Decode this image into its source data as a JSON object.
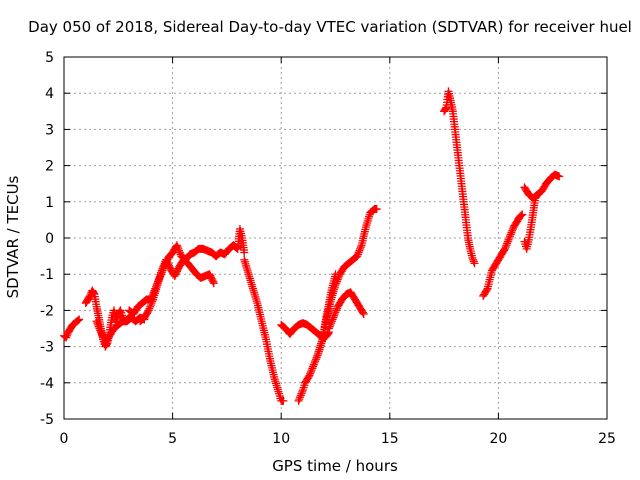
{
  "chart_data": {
    "type": "scatter",
    "title": "Day 050 of 2018, Sidereal Day-to-day VTEC variation (SDTVAR) for receiver huel",
    "xlabel": "GPS time / hours",
    "ylabel": "SDTVAR / TECUs",
    "xlim": [
      0,
      25
    ],
    "ylim": [
      -5,
      5
    ],
    "xticks": [
      "0",
      "5",
      "10",
      "15",
      "20",
      "25"
    ],
    "yticks": [
      "-5",
      "-4",
      "-3",
      "-2",
      "-1",
      "0",
      "1",
      "2",
      "3",
      "4",
      "5"
    ],
    "grid": true,
    "marker": "plus",
    "color": "#ff0000",
    "series": [
      {
        "x": [
          0.0,
          0.1,
          0.2,
          0.3,
          0.4,
          0.5,
          0.6,
          0.7
        ],
        "y": [
          -2.7,
          -2.75,
          -2.6,
          -2.5,
          -2.4,
          -2.35,
          -2.3,
          -2.25
        ]
      },
      {
        "x": [
          1.0,
          1.1,
          1.2,
          1.3,
          1.4,
          1.5,
          1.6,
          1.7,
          1.8,
          1.9,
          2.0,
          2.1,
          2.2,
          2.3,
          2.4,
          2.5,
          2.6,
          2.7,
          2.8,
          3.0
        ],
        "y": [
          -1.8,
          -1.7,
          -1.6,
          -1.45,
          -1.55,
          -1.9,
          -2.2,
          -2.5,
          -2.8,
          -3.0,
          -2.9,
          -2.6,
          -2.2,
          -2.0,
          -2.3,
          -2.1,
          -2.0,
          -2.2,
          -2.3,
          -2.2
        ]
      },
      {
        "x": [
          1.5,
          1.7,
          1.9,
          2.1,
          2.3,
          2.5,
          2.7,
          2.9,
          3.1,
          3.3,
          3.5,
          3.7
        ],
        "y": [
          -2.3,
          -2.6,
          -2.9,
          -2.7,
          -2.5,
          -2.4,
          -2.3,
          -2.3,
          -2.2,
          -2.3,
          -2.2,
          -2.25
        ]
      },
      {
        "x": [
          3.0,
          3.2,
          3.4,
          3.6,
          3.8,
          4.0,
          4.2,
          4.4,
          4.6,
          4.8,
          5.0,
          5.2,
          5.4,
          5.6,
          5.8,
          6.0,
          6.2,
          6.4,
          6.6,
          6.8,
          7.0
        ],
        "y": [
          -2.0,
          -2.1,
          -1.9,
          -1.8,
          -1.7,
          -1.7,
          -1.4,
          -1.1,
          -0.8,
          -0.55,
          -0.4,
          -0.2,
          -0.5,
          -0.6,
          -0.45,
          -0.4,
          -0.3,
          -0.3,
          -0.35,
          -0.4,
          -0.5
        ]
      },
      {
        "x": [
          3.5,
          3.7,
          3.9,
          4.1,
          4.3,
          4.5,
          4.7,
          4.9,
          5.1,
          5.3,
          5.5,
          5.7,
          5.9,
          6.1,
          6.3,
          6.5,
          6.7,
          6.9
        ],
        "y": [
          -2.3,
          -2.2,
          -2.0,
          -1.7,
          -1.3,
          -0.9,
          -0.6,
          -0.85,
          -1.05,
          -0.8,
          -0.6,
          -0.7,
          -0.85,
          -1.0,
          -1.1,
          -1.05,
          -1.0,
          -1.25
        ]
      },
      {
        "x": [
          7.0,
          7.2,
          7.4,
          7.6,
          7.8,
          8.0,
          8.1,
          8.2,
          8.3
        ],
        "y": [
          -0.5,
          -0.4,
          -0.45,
          -0.3,
          -0.2,
          -0.3,
          0.25,
          0.0,
          -0.4
        ]
      },
      {
        "x": [
          8.3,
          8.5,
          8.7,
          8.9,
          9.1,
          9.3,
          9.5,
          9.7,
          9.9,
          10.0,
          10.1
        ],
        "y": [
          -0.6,
          -1.0,
          -1.4,
          -1.8,
          -2.3,
          -2.8,
          -3.4,
          -3.9,
          -4.3,
          -4.5,
          -4.5
        ]
      },
      {
        "x": [
          10.0,
          10.2,
          10.4,
          10.6,
          10.8,
          11.0,
          11.2,
          11.4,
          11.6,
          11.8,
          12.0,
          12.1,
          12.2
        ],
        "y": [
          -2.4,
          -2.5,
          -2.65,
          -2.5,
          -2.4,
          -2.35,
          -2.4,
          -2.5,
          -2.6,
          -2.7,
          -2.75,
          -2.7,
          -2.6
        ]
      },
      {
        "x": [
          12.2,
          12.4,
          12.6,
          12.8,
          13.0,
          13.2,
          13.4,
          13.6,
          13.8
        ],
        "y": [
          -2.5,
          -2.2,
          -1.9,
          -1.7,
          -1.55,
          -1.5,
          -1.7,
          -1.9,
          -2.1
        ]
      },
      {
        "x": [
          10.8,
          10.9,
          11.0,
          11.1,
          11.3,
          11.5,
          11.7,
          11.9,
          12.1,
          12.3,
          12.5,
          12.7,
          12.9,
          13.1,
          13.3,
          13.5,
          13.7,
          13.9,
          14.1,
          14.3,
          14.4
        ],
        "y": [
          -4.5,
          -4.35,
          -4.2,
          -4.0,
          -3.8,
          -3.5,
          -3.2,
          -2.8,
          -2.2,
          -1.7,
          -1.3,
          -1.0,
          -0.8,
          -0.7,
          -0.6,
          -0.5,
          -0.2,
          0.3,
          0.7,
          0.8,
          0.8
        ]
      },
      {
        "x": [
          11.7,
          11.9,
          12.1,
          12.3,
          12.5
        ],
        "y": [
          -3.2,
          -2.8,
          -2.1,
          -1.5,
          -1.0
        ]
      },
      {
        "x": [
          17.5,
          17.6,
          17.7,
          17.8,
          17.9,
          18.0,
          18.1,
          18.2,
          18.3,
          18.4,
          18.5,
          18.6,
          18.7,
          18.8,
          18.9
        ],
        "y": [
          3.5,
          3.6,
          4.05,
          3.8,
          3.5,
          3.0,
          2.5,
          2.0,
          1.5,
          1.0,
          0.5,
          0.0,
          -0.3,
          -0.55,
          -0.7
        ]
      },
      {
        "x": [
          19.3,
          19.5,
          19.7,
          19.9,
          20.1,
          20.3,
          20.5,
          20.7,
          20.9,
          21.0,
          21.1
        ],
        "y": [
          -1.6,
          -1.4,
          -0.9,
          -0.7,
          -0.5,
          -0.3,
          0.0,
          0.3,
          0.5,
          0.6,
          0.65
        ]
      },
      {
        "x": [
          21.2,
          21.3,
          21.4,
          21.5,
          21.6,
          21.7,
          21.8,
          22.0,
          22.2,
          22.4,
          22.6,
          22.8
        ],
        "y": [
          -0.1,
          -0.3,
          -0.05,
          0.3,
          0.7,
          1.1,
          1.2,
          1.3,
          1.5,
          1.65,
          1.75,
          1.7
        ]
      },
      {
        "x": [
          21.2,
          21.4,
          21.6,
          21.8
        ],
        "y": [
          1.4,
          1.2,
          1.1,
          1.2
        ]
      }
    ]
  }
}
